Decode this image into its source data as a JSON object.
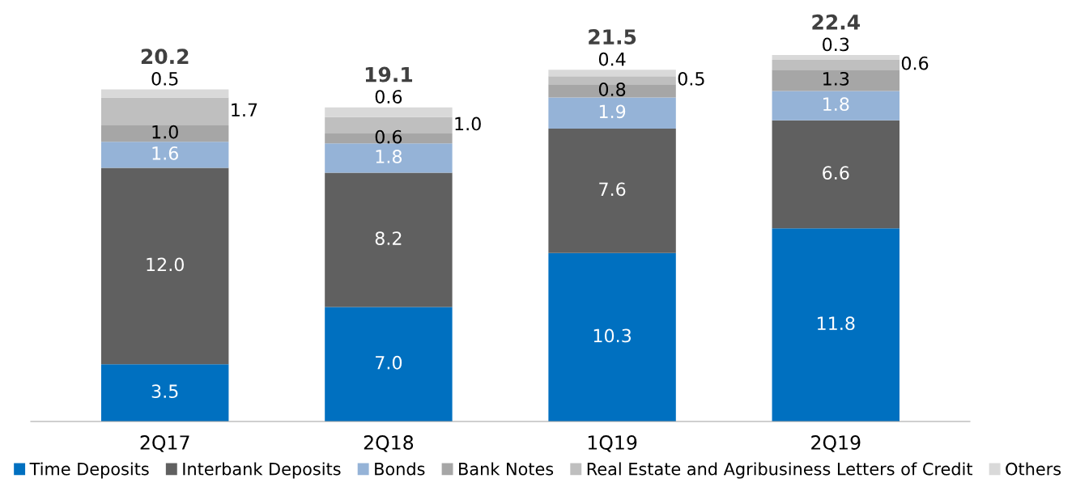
{
  "chart_data": {
    "type": "bar",
    "stacked": true,
    "legend": "bottom",
    "grid": false,
    "categories": [
      "2Q17",
      "2Q18",
      "1Q19",
      "2Q19"
    ],
    "series": [
      {
        "name": "Time Deposits",
        "color": "#0070c0",
        "values": [
          3.5,
          7.0,
          10.3,
          11.8
        ],
        "value_labels": [
          "3.5",
          "7.0",
          "10.3",
          "11.8"
        ]
      },
      {
        "name": "Interbank Deposits",
        "color": "#606060",
        "values": [
          12.0,
          8.2,
          7.6,
          6.6
        ],
        "value_labels": [
          "12.0",
          "8.2",
          "7.6",
          "6.6"
        ]
      },
      {
        "name": "Bonds",
        "color": "#95b3d7",
        "values": [
          1.6,
          1.8,
          1.9,
          1.8
        ],
        "value_labels": [
          "1.6",
          "1.8",
          "1.9",
          "1.8"
        ]
      },
      {
        "name": "Bank Notes",
        "color": "#a6a6a6",
        "values": [
          1.0,
          0.6,
          0.8,
          1.3
        ],
        "value_labels": [
          "1.0",
          "0.6",
          "0.8",
          "1.3"
        ]
      },
      {
        "name": "Real Estate and Agribusiness Letters of Credit",
        "color": "#bfbfbf",
        "values": [
          1.7,
          1.0,
          0.5,
          0.6
        ],
        "value_labels": [
          "1.7",
          "1.0",
          "0.5",
          "0.6"
        ]
      },
      {
        "name": "Others",
        "color": "#d9d9d9",
        "values": [
          0.5,
          0.6,
          0.4,
          0.3
        ],
        "value_labels": [
          "0.5",
          "0.6",
          "0.4",
          "0.3"
        ]
      }
    ],
    "totals": [
      "20.2",
      "19.1",
      "21.5",
      "22.4"
    ]
  }
}
